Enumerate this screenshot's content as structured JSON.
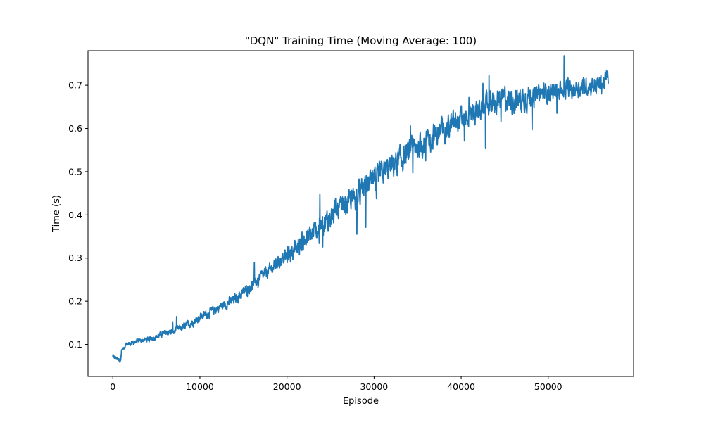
{
  "chart_data": {
    "type": "line",
    "title": "\"DQN\" Training Time (Moving Average: 100)",
    "xlabel": "Episode",
    "ylabel": "Time (s)",
    "xlim": [
      -2850,
      59800
    ],
    "ylim": [
      0.026,
      0.78
    ],
    "xticks": [
      0,
      10000,
      20000,
      30000,
      40000,
      50000
    ],
    "xtick_labels": [
      "0",
      "10000",
      "20000",
      "30000",
      "40000",
      "50000"
    ],
    "yticks": [
      0.1,
      0.2,
      0.3,
      0.4,
      0.5,
      0.6,
      0.7
    ],
    "ytick_labels": [
      "0.1",
      "0.2",
      "0.3",
      "0.4",
      "0.5",
      "0.6",
      "0.7"
    ],
    "grid": false,
    "legend": "none",
    "color": "#1f77b4",
    "series": [
      {
        "x": [
          0,
          500,
          900,
          1000,
          1500,
          2000,
          3000,
          4000,
          5000,
          6000,
          7000,
          8000,
          9000,
          10000,
          11000,
          12000,
          13000,
          14000,
          15000,
          16000,
          17000,
          18000,
          19000,
          20000,
          21000,
          22000,
          23000,
          24000,
          25000,
          26000,
          27000,
          28000,
          29000,
          30000,
          31000,
          32000,
          33000,
          34000,
          35000,
          36000,
          37000,
          38000,
          39000,
          40000,
          41000,
          42000,
          43000,
          44000,
          45000,
          46000,
          47000,
          48000,
          49000,
          50000,
          51000,
          52000,
          53000,
          54000,
          55000,
          56000,
          56500,
          56900
        ],
        "y": [
          0.071,
          0.069,
          0.062,
          0.085,
          0.1,
          0.102,
          0.108,
          0.112,
          0.118,
          0.126,
          0.132,
          0.139,
          0.15,
          0.163,
          0.172,
          0.184,
          0.194,
          0.205,
          0.22,
          0.236,
          0.256,
          0.272,
          0.29,
          0.305,
          0.323,
          0.34,
          0.357,
          0.375,
          0.395,
          0.412,
          0.428,
          0.445,
          0.462,
          0.48,
          0.497,
          0.513,
          0.527,
          0.542,
          0.557,
          0.57,
          0.584,
          0.596,
          0.608,
          0.62,
          0.632,
          0.643,
          0.654,
          0.664,
          0.671,
          0.664,
          0.669,
          0.676,
          0.68,
          0.684,
          0.688,
          0.692,
          0.694,
          0.697,
          0.699,
          0.702,
          0.708,
          0.728
        ]
      }
    ]
  }
}
